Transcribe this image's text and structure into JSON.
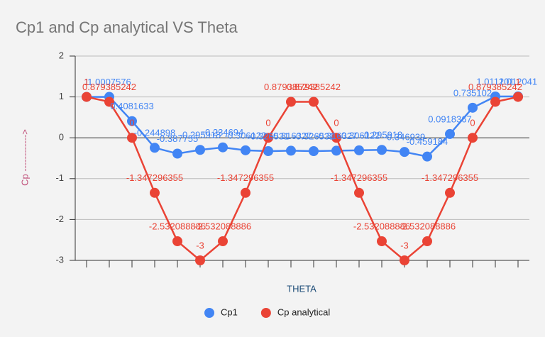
{
  "chart_data": {
    "type": "line",
    "title": "Cp1 and Cp analytical VS Theta",
    "x_label": "THETA",
    "y_label": "Cp ------------>",
    "categories": [
      null,
      null,
      null,
      null,
      null,
      null,
      null,
      null,
      null,
      null,
      null,
      null,
      null,
      null,
      null,
      null,
      null,
      null,
      null,
      null
    ],
    "series": [
      {
        "name": "Cp1",
        "color": "#4285f4",
        "values": [
          1,
          1.0007576,
          0.4081633,
          -0.244898,
          -0.387755,
          -0.295918,
          -0.234694,
          -0.306122,
          -0.326531,
          -0.316327,
          -0.326531,
          -0.316327,
          -0.306122,
          -0.295918,
          -0.346939,
          -0.459184,
          0.0918367,
          0.735102,
          1.011201,
          1.012041
        ]
      },
      {
        "name": "Cp analytical",
        "color": "#ea4335",
        "values": [
          1,
          0.879385242,
          0,
          -1.347296355,
          -2.532088886,
          -3,
          -2.532088886,
          -1.347296355,
          0,
          0.879385242,
          0.879385242,
          0,
          -1.347296355,
          -2.532088886,
          -3,
          -2.532088886,
          -1.347296355,
          0,
          0.879385242,
          1
        ]
      }
    ],
    "ylim": [
      -3,
      2
    ],
    "yticks": [
      -3,
      -2,
      -1,
      0,
      1,
      2
    ],
    "grid": true,
    "legend": "bottom"
  }
}
